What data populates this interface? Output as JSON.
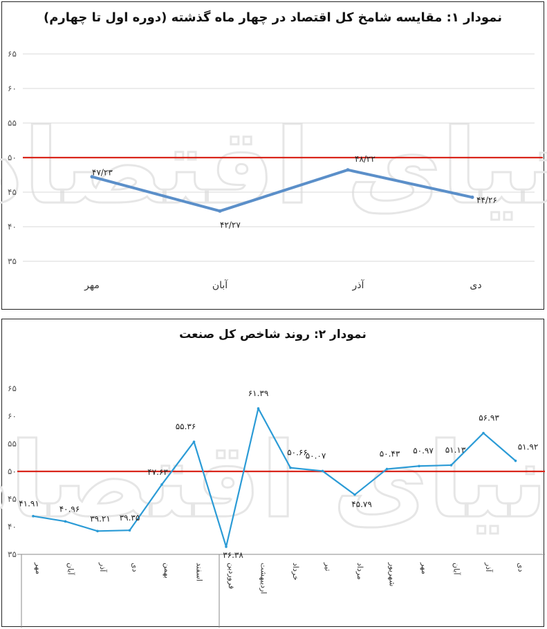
{
  "chart_data": [
    {
      "type": "line",
      "title": "نمودار ۱: مقایسه شامخ کل اقتصاد در چهار ماه گذشته (دوره اول تا چهارم)",
      "categories": [
        "مهر",
        "آبان",
        "آذر",
        "دی"
      ],
      "values": [
        47.23,
        42.27,
        48.22,
        44.26
      ],
      "data_labels": [
        "۴۷/۲۳",
        "۴۲/۲۷",
        "۴۸/۲۲",
        "۴۴/۲۶"
      ],
      "yticks": [
        35,
        40,
        45,
        50,
        55,
        60,
        65
      ],
      "ytick_labels": [
        "۳۵",
        "۴۰",
        "۴۵",
        "۵۰",
        "۵۵",
        "۶۰",
        "۶۵"
      ],
      "ylim": [
        35,
        65
      ],
      "reference_line": 50,
      "grid": true,
      "colors": {
        "line": "#5b8fc9",
        "reference": "#d9261c",
        "grid": "#d9d9d9"
      },
      "watermark": "دنیای اقتصاد"
    },
    {
      "type": "line",
      "title": "نمودار ۲: روند شاخص کل صنعت",
      "categories": [
        "مهر",
        "آبان",
        "آذر",
        "دی",
        "بهمن",
        "اسفند",
        "فروردین",
        "اردیبهشت",
        "خرداد",
        "تیر",
        "مرداد",
        "شهریور",
        "مهر",
        "آبان",
        "آذر",
        "دی"
      ],
      "values": [
        41.91,
        40.96,
        39.21,
        39.35,
        47.63,
        55.36,
        36.38,
        61.39,
        50.66,
        50.07,
        45.79,
        50.43,
        50.97,
        51.13,
        56.93,
        51.92
      ],
      "data_labels": [
        "۴۱.۹۱",
        "۴۰.۹۶",
        "۳۹.۲۱",
        "۳۹.۳۵",
        "۴۷.۶۳",
        "۵۵.۳۶",
        "۳۶.۳۸",
        "۶۱.۳۹",
        "۵۰.۶۶",
        "۵۰.۰۷",
        "۴۵.۷۹",
        "۵۰.۴۳",
        "۵۰.۹۷",
        "۵۱.۱۳",
        "۵۶.۹۳",
        "۵۱.۹۲"
      ],
      "yticks": [
        35,
        40,
        45,
        50,
        55,
        60,
        65
      ],
      "ytick_labels": [
        "۳۵",
        "۴۰",
        "۴۵",
        "۵۰",
        "۵۵",
        "۶۰",
        "۶۵"
      ],
      "ylim": [
        35,
        65
      ],
      "reference_line": 50,
      "grid": false,
      "colors": {
        "line": "#2b9bd6",
        "reference": "#d9261c",
        "axis": "#888888"
      },
      "watermark": "دنیای اقتصاد"
    }
  ]
}
